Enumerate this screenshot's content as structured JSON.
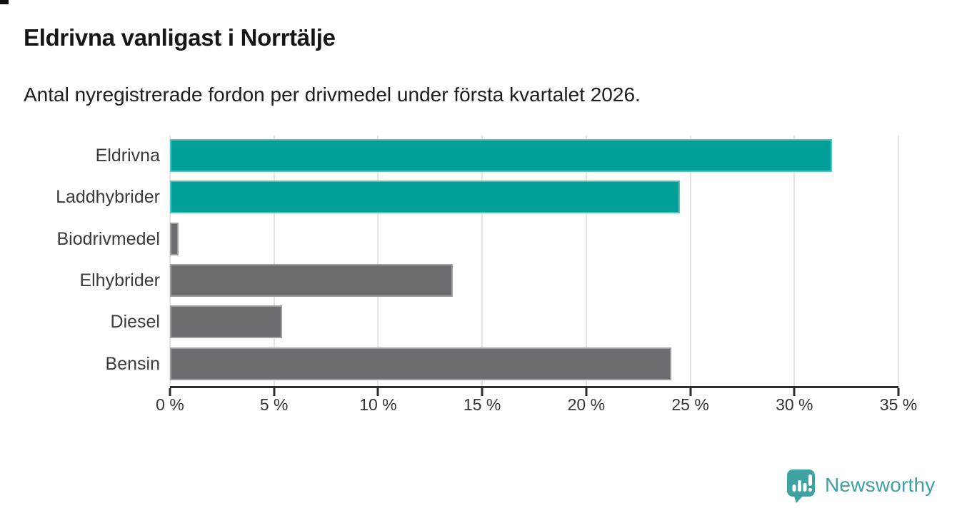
{
  "page": {
    "title": "Eldrivna vanligast i Norrtälje",
    "subtitle": "Antal nyregistrerade fordon per drivmedel under första kvartalet 2026."
  },
  "chart_data": {
    "type": "bar",
    "orientation": "horizontal",
    "title": "Eldrivna vanligast i Norrtälje",
    "subtitle": "Antal nyregistrerade fordon per drivmedel under första kvartalet 2026.",
    "categories": [
      "Eldrivna",
      "Laddhybrider",
      "Biodrivmedel",
      "Elhybrider",
      "Diesel",
      "Bensin"
    ],
    "values": [
      31.8,
      24.5,
      0.4,
      13.6,
      5.4,
      24.1
    ],
    "unit": "%",
    "bar_colors": [
      "#00A099",
      "#00A099",
      "#6C6C71",
      "#6C6C71",
      "#6C6C71",
      "#6C6C71"
    ],
    "xlim": [
      0,
      35
    ],
    "x_ticks": [
      0,
      5,
      10,
      15,
      20,
      25,
      30,
      35
    ],
    "x_tick_labels": [
      "0 %",
      "5 %",
      "10 %",
      "15 %",
      "20 %",
      "25 %",
      "30 %",
      "35 %"
    ],
    "xlabel": "",
    "ylabel": "",
    "grid": true,
    "legend": false
  },
  "branding": {
    "logo_text": "Newsworthy",
    "logo_color": "#3FA0A0",
    "icon_color": "#3FA3A1",
    "icon": "newsworthy-speech-bubble-bar-chart-icon"
  },
  "colors": {
    "accent_teal": "#00A099",
    "bar_gray": "#6C6C71",
    "axis": "#2D2D2D",
    "gridline": "#E4E4E4",
    "title_text": "#161616",
    "label_text": "#3A3A3A"
  }
}
